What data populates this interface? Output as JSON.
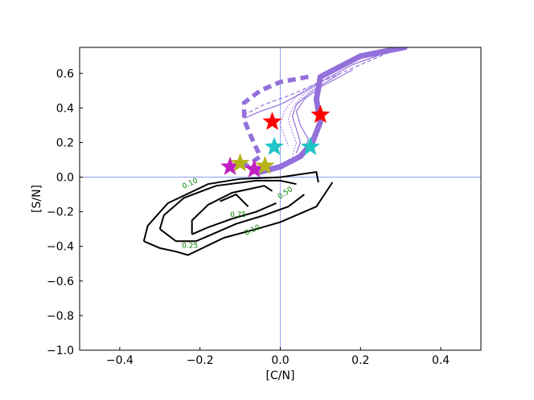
{
  "chart_data": {
    "type": "line",
    "xlabel": "[C/N]",
    "ylabel": "[S/N]",
    "xlim": [
      -0.5,
      0.5
    ],
    "ylim": [
      -1.0,
      0.75
    ],
    "xticks": [
      "−0.4",
      "−0.2",
      "0.0",
      "0.2",
      "0.4"
    ],
    "xtick_values": [
      -0.4,
      -0.2,
      0.0,
      0.2,
      0.4
    ],
    "yticks": [
      "−1.0",
      "−0.8",
      "−0.6",
      "−0.4",
      "−0.2",
      "0.0",
      "0.2",
      "0.4",
      "0.6"
    ],
    "ytick_values": [
      -1.0,
      -0.8,
      -0.6,
      -0.4,
      -0.2,
      0.0,
      0.2,
      0.4,
      0.6
    ],
    "grid": false,
    "reference_lines": {
      "x": 0.0,
      "y": 0.0,
      "color": "#7b8ff0"
    },
    "colors": {
      "track": "#9370db",
      "contour": "#000000",
      "contour_label": "#008000",
      "star_red": "#ff0000",
      "star_cyan": "#1fc4c4",
      "star_magenta": "#c020c0",
      "star_olive": "#b5b51a"
    },
    "tracks": [
      {
        "style": "thick-solid",
        "points": [
          [
            0.31,
            0.75
          ],
          [
            0.2,
            0.7
          ],
          [
            0.1,
            0.58
          ],
          [
            0.09,
            0.45
          ],
          [
            0.1,
            0.32
          ],
          [
            0.08,
            0.2
          ],
          [
            0.05,
            0.12
          ],
          [
            0.0,
            0.06
          ],
          [
            -0.05,
            0.03
          ]
        ]
      },
      {
        "style": "thick-dashed",
        "points": [
          [
            0.07,
            0.58
          ],
          [
            0.0,
            0.55
          ],
          [
            -0.05,
            0.5
          ],
          [
            -0.09,
            0.43
          ],
          [
            -0.09,
            0.33
          ],
          [
            -0.07,
            0.22
          ],
          [
            -0.05,
            0.12
          ],
          [
            -0.08,
            0.07
          ],
          [
            -0.1,
            0.06
          ]
        ]
      },
      {
        "style": "thin-solid",
        "points": [
          [
            0.3,
            0.75
          ],
          [
            0.18,
            0.65
          ],
          [
            0.1,
            0.55
          ],
          [
            0.05,
            0.48
          ],
          [
            0.0,
            0.42
          ],
          [
            -0.05,
            0.38
          ],
          [
            -0.09,
            0.34
          ]
        ]
      },
      {
        "style": "thin-dashed",
        "points": [
          [
            0.3,
            0.75
          ],
          [
            0.15,
            0.6
          ],
          [
            0.08,
            0.53
          ],
          [
            0.02,
            0.47
          ],
          [
            -0.04,
            0.42
          ],
          [
            -0.09,
            0.36
          ]
        ]
      },
      {
        "style": "thin-solid",
        "points": [
          [
            0.18,
            0.62
          ],
          [
            0.1,
            0.52
          ],
          [
            0.06,
            0.45
          ],
          [
            0.04,
            0.38
          ],
          [
            0.05,
            0.3
          ],
          [
            0.07,
            0.22
          ],
          [
            0.06,
            0.15
          ]
        ]
      },
      {
        "style": "thin-solid",
        "points": [
          [
            0.15,
            0.6
          ],
          [
            0.08,
            0.5
          ],
          [
            0.04,
            0.42
          ],
          [
            0.03,
            0.35
          ],
          [
            0.04,
            0.28
          ],
          [
            0.05,
            0.2
          ],
          [
            0.04,
            0.14
          ]
        ]
      },
      {
        "style": "thin-dotted",
        "points": [
          [
            0.12,
            0.58
          ],
          [
            0.06,
            0.48
          ],
          [
            0.03,
            0.4
          ],
          [
            0.02,
            0.33
          ],
          [
            0.03,
            0.26
          ],
          [
            0.04,
            0.2
          ],
          [
            0.03,
            0.12
          ]
        ]
      },
      {
        "style": "thin-dotted",
        "points": [
          [
            0.1,
            0.56
          ],
          [
            0.04,
            0.47
          ],
          [
            0.01,
            0.38
          ],
          [
            0.0,
            0.3
          ],
          [
            0.01,
            0.24
          ],
          [
            0.02,
            0.18
          ]
        ]
      }
    ],
    "contours": [
      {
        "label": "0.10",
        "label_at": [
          -0.225,
          -0.035
        ],
        "label_angle": -25,
        "points": [
          [
            -0.34,
            -0.37
          ],
          [
            -0.33,
            -0.28
          ],
          [
            -0.28,
            -0.15
          ],
          [
            -0.18,
            -0.04
          ],
          [
            -0.1,
            -0.01
          ],
          [
            0.0,
            0.0
          ],
          [
            0.06,
            0.02
          ],
          [
            0.09,
            0.03
          ],
          [
            0.095,
            -0.03
          ]
        ]
      },
      {
        "label": "0.10",
        "label_at": [
          -0.07,
          -0.305
        ],
        "label_angle": -25,
        "points": [
          [
            0.13,
            -0.03
          ],
          [
            0.09,
            -0.17
          ],
          [
            0.0,
            -0.26
          ],
          [
            -0.06,
            -0.3
          ],
          [
            -0.14,
            -0.35
          ],
          [
            -0.23,
            -0.45
          ],
          [
            -0.26,
            -0.43
          ],
          [
            -0.3,
            -0.41
          ],
          [
            -0.34,
            -0.37
          ]
        ]
      },
      {
        "label": "0.25",
        "label_at": [
          -0.225,
          -0.395
        ],
        "label_angle": 0,
        "points": [
          [
            -0.3,
            -0.3
          ],
          [
            -0.29,
            -0.22
          ],
          [
            -0.24,
            -0.12
          ],
          [
            -0.16,
            -0.05
          ],
          [
            -0.06,
            -0.02
          ],
          [
            0.0,
            -0.02
          ],
          [
            0.04,
            -0.04
          ]
        ]
      },
      {
        "label": "0.50",
        "label_at": [
          0.012,
          -0.09
        ],
        "label_angle": -35,
        "points": [
          [
            0.06,
            -0.1
          ],
          [
            0.02,
            -0.17
          ],
          [
            -0.04,
            -0.22
          ],
          [
            -0.11,
            -0.27
          ],
          [
            -0.17,
            -0.33
          ],
          [
            -0.21,
            -0.37
          ],
          [
            -0.26,
            -0.37
          ],
          [
            -0.3,
            -0.3
          ]
        ]
      },
      {
        "label": "",
        "label_at": null,
        "label_angle": 0,
        "points": [
          [
            -0.22,
            -0.33
          ],
          [
            -0.22,
            -0.25
          ],
          [
            -0.18,
            -0.16
          ],
          [
            -0.12,
            -0.09
          ],
          [
            -0.04,
            -0.05
          ],
          [
            -0.02,
            -0.08
          ]
        ]
      },
      {
        "label": "0.75",
        "label_at": [
          -0.105,
          -0.215
        ],
        "label_angle": 0,
        "points": [
          [
            -0.01,
            -0.15
          ],
          [
            -0.06,
            -0.2
          ],
          [
            -0.12,
            -0.24
          ],
          [
            -0.18,
            -0.29
          ],
          [
            -0.22,
            -0.33
          ]
        ]
      },
      {
        "label": "",
        "label_at": null,
        "label_angle": 0,
        "points": [
          [
            -0.08,
            -0.17
          ],
          [
            -0.11,
            -0.1
          ],
          [
            -0.15,
            -0.14
          ]
        ]
      }
    ],
    "stars": [
      {
        "color": "star_red",
        "x": -0.02,
        "y": 0.32
      },
      {
        "color": "star_red",
        "x": 0.1,
        "y": 0.36
      },
      {
        "color": "star_cyan",
        "x": -0.015,
        "y": 0.175
      },
      {
        "color": "star_cyan",
        "x": 0.075,
        "y": 0.175
      },
      {
        "color": "star_magenta",
        "x": -0.125,
        "y": 0.06
      },
      {
        "color": "star_magenta",
        "x": -0.065,
        "y": 0.045
      },
      {
        "color": "star_olive",
        "x": -0.1,
        "y": 0.08
      },
      {
        "color": "star_olive",
        "x": -0.038,
        "y": 0.065
      }
    ]
  }
}
